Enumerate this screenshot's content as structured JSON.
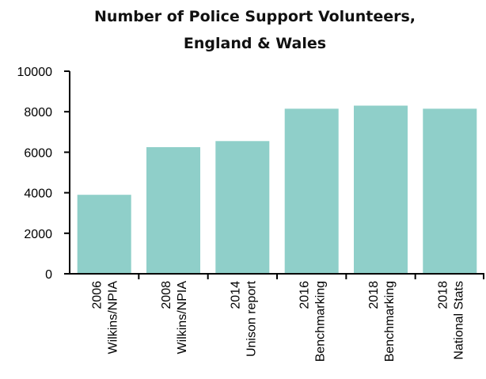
{
  "chart_data": {
    "type": "bar",
    "title": [
      "Number of Police Support Volunteers,",
      "England & Wales"
    ],
    "xlabel": "",
    "ylabel": "",
    "ylim": [
      0,
      10000
    ],
    "yticks": [
      "0",
      "2000",
      "4000",
      "6000",
      "8000",
      "10000"
    ],
    "grid": false,
    "legend": "none",
    "categories": [
      [
        "2006",
        "Wilkins/NPIA"
      ],
      [
        "2008",
        "Wilkins/NPIA"
      ],
      [
        "2014",
        "Unison report"
      ],
      [
        "2016",
        "Benchmarking"
      ],
      [
        "2018",
        "Benchmarking"
      ],
      [
        "2018",
        "National Stats"
      ]
    ],
    "values": [
      3900,
      6250,
      6550,
      8150,
      8300,
      8150
    ],
    "bar_color": "#8fcfc9",
    "axis_color": "#000000"
  }
}
